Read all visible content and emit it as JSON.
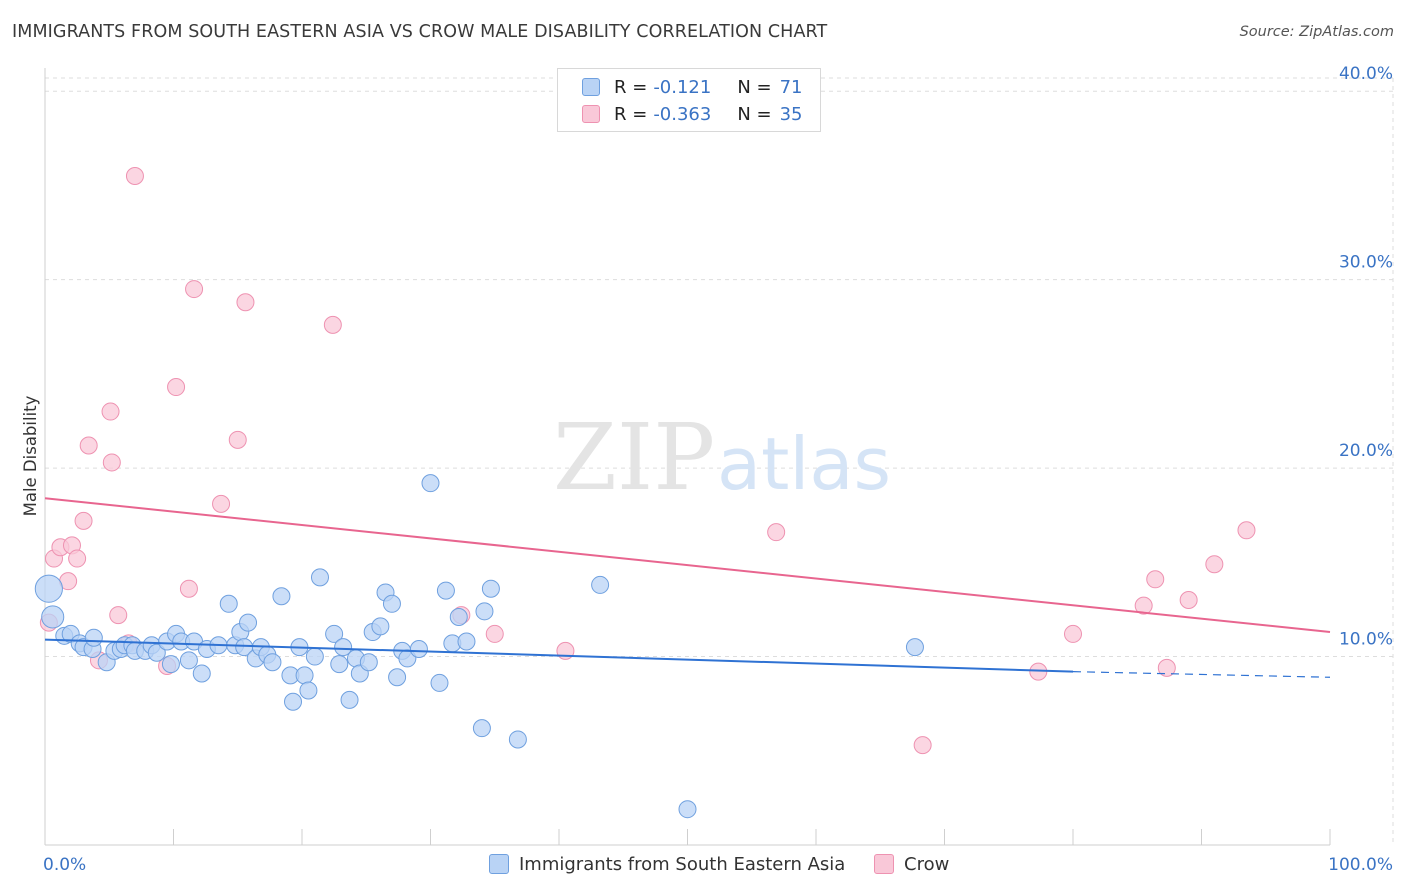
{
  "title": "IMMIGRANTS FROM SOUTH EASTERN ASIA VS CROW MALE DISABILITY CORRELATION CHART",
  "source": "Source: ZipAtlas.com",
  "watermark": {
    "zip": "ZIP",
    "atlas": "atlas"
  },
  "legend": {
    "rows": [
      {
        "r_label": "R =",
        "r_value": "-0.121",
        "n_label": "N =",
        "n_value": "71"
      },
      {
        "r_label": "R =",
        "r_value": "-0.363",
        "n_label": "N =",
        "n_value": "35"
      }
    ]
  },
  "bottom_legend": [
    "Immigrants from South Eastern Asia",
    "Crow"
  ],
  "colors": {
    "blue_fill": "#b9d3f5",
    "blue_stroke": "#6fa0df",
    "blue_line": "#2f72d3",
    "pink_fill": "#f9c8d8",
    "pink_stroke": "#ee92b1",
    "pink_line": "#e8658f",
    "tick_label": "#3a73c4",
    "grid": "#dddddd"
  },
  "chart_data": {
    "type": "scatter",
    "title": "IMMIGRANTS FROM SOUTH EASTERN ASIA VS CROW MALE DISABILITY CORRELATION CHART",
    "xlabel": "",
    "ylabel": "Male Disability",
    "xlim": [
      0,
      100
    ],
    "ylim": [
      0,
      40.7
    ],
    "x_tick_labels": [
      "0.0%",
      "100.0%"
    ],
    "y_ticks": [
      10,
      20,
      30,
      40
    ],
    "y_tick_labels": [
      "10.0%",
      "20.0%",
      "30.0%",
      "40.0%"
    ],
    "grid": true,
    "series": [
      {
        "name": "Immigrants from South Eastern Asia",
        "r": -0.121,
        "n": 71,
        "trend": {
          "x0": 0,
          "y0": 10.9,
          "x1": 80,
          "y1": 9.2,
          "dash_to_x": 100,
          "dash_to_y": 8.9
        },
        "points": [
          [
            0.3,
            13.6,
            1.6
          ],
          [
            0.6,
            12.1,
            1.3
          ],
          [
            1.5,
            11.1,
            1
          ],
          [
            2,
            11.2,
            1
          ],
          [
            2.7,
            10.7,
            1
          ],
          [
            3,
            10.5,
            1
          ],
          [
            3.7,
            10.4,
            1
          ],
          [
            3.8,
            11,
            1
          ],
          [
            4.8,
            9.7,
            1
          ],
          [
            5.4,
            10.3,
            1
          ],
          [
            5.9,
            10.4,
            1
          ],
          [
            6.2,
            10.6,
            1
          ],
          [
            6.8,
            10.6,
            1
          ],
          [
            7,
            10.3,
            1
          ],
          [
            7.8,
            10.3,
            1
          ],
          [
            8.3,
            10.6,
            1
          ],
          [
            8.7,
            10.2,
            1
          ],
          [
            9.5,
            10.8,
            1
          ],
          [
            9.8,
            9.6,
            1
          ],
          [
            10.2,
            11.2,
            1
          ],
          [
            10.6,
            10.8,
            1
          ],
          [
            11.2,
            9.8,
            1
          ],
          [
            11.6,
            10.8,
            1
          ],
          [
            12.2,
            9.1,
            1
          ],
          [
            12.6,
            10.4,
            1
          ],
          [
            13.5,
            10.6,
            1
          ],
          [
            14.3,
            12.8,
            1
          ],
          [
            14.8,
            10.6,
            1
          ],
          [
            15.2,
            11.3,
            1
          ],
          [
            15.5,
            10.5,
            1
          ],
          [
            15.8,
            11.8,
            1
          ],
          [
            16.4,
            9.9,
            1
          ],
          [
            16.8,
            10.5,
            1
          ],
          [
            17.3,
            10.1,
            1
          ],
          [
            17.7,
            9.7,
            1
          ],
          [
            18.4,
            13.2,
            1
          ],
          [
            19.1,
            9,
            1
          ],
          [
            19.3,
            7.6,
            1
          ],
          [
            19.8,
            10.5,
            1
          ],
          [
            20.2,
            9,
            1
          ],
          [
            20.5,
            8.2,
            1
          ],
          [
            21,
            10,
            1
          ],
          [
            21.4,
            14.2,
            1
          ],
          [
            22.5,
            11.2,
            1
          ],
          [
            22.9,
            9.6,
            1
          ],
          [
            23.2,
            10.5,
            1
          ],
          [
            23.7,
            7.7,
            1
          ],
          [
            24.2,
            9.9,
            1
          ],
          [
            24.5,
            9.1,
            1
          ],
          [
            25.2,
            9.7,
            1
          ],
          [
            25.5,
            11.3,
            1
          ],
          [
            26.1,
            11.6,
            1
          ],
          [
            26.5,
            13.4,
            1
          ],
          [
            27,
            12.8,
            1
          ],
          [
            27.4,
            8.9,
            1
          ],
          [
            27.8,
            10.3,
            1
          ],
          [
            28.2,
            9.9,
            1
          ],
          [
            29.1,
            10.4,
            1
          ],
          [
            30,
            19.2,
            1
          ],
          [
            30.7,
            8.6,
            1
          ],
          [
            31.2,
            13.5,
            1
          ],
          [
            31.7,
            10.7,
            1
          ],
          [
            32.2,
            12.1,
            1
          ],
          [
            32.8,
            10.8,
            1
          ],
          [
            34.2,
            12.4,
            1
          ],
          [
            34.7,
            13.6,
            1
          ],
          [
            34,
            6.2,
            1
          ],
          [
            36.8,
            5.6,
            1
          ],
          [
            43.2,
            13.8,
            1
          ],
          [
            50,
            1.9,
            1
          ],
          [
            67.7,
            10.5,
            1
          ]
        ]
      },
      {
        "name": "Crow",
        "r": -0.363,
        "n": 35,
        "trend": {
          "x0": 0,
          "y0": 18.4,
          "x1": 100,
          "y1": 11.3
        },
        "points": [
          [
            0.3,
            11.8,
            1
          ],
          [
            0.7,
            15.2,
            1
          ],
          [
            1.2,
            15.8,
            1
          ],
          [
            1.8,
            14,
            1
          ],
          [
            2.1,
            15.9,
            1
          ],
          [
            2.5,
            15.2,
            1
          ],
          [
            3,
            17.2,
            1
          ],
          [
            3.4,
            21.2,
            1
          ],
          [
            4.2,
            9.8,
            1
          ],
          [
            5.1,
            23,
            1
          ],
          [
            5.2,
            20.3,
            1
          ],
          [
            5.7,
            12.2,
            1
          ],
          [
            6.5,
            10.7,
            1
          ],
          [
            7,
            35.5,
            1
          ],
          [
            9.5,
            9.5,
            1
          ],
          [
            10.2,
            24.3,
            1
          ],
          [
            11.2,
            13.6,
            1
          ],
          [
            11.6,
            29.5,
            1
          ],
          [
            13.7,
            18.1,
            1
          ],
          [
            15,
            21.5,
            1
          ],
          [
            15.6,
            28.8,
            1
          ],
          [
            22.4,
            27.6,
            1
          ],
          [
            32.4,
            12.2,
            1
          ],
          [
            35,
            11.2,
            1
          ],
          [
            40.5,
            10.3,
            1
          ],
          [
            56.9,
            16.6,
            1
          ],
          [
            68.3,
            5.3,
            1
          ],
          [
            77.3,
            9.2,
            1
          ],
          [
            80,
            11.2,
            1
          ],
          [
            85.5,
            12.7,
            1
          ],
          [
            86.4,
            14.1,
            1
          ],
          [
            87.3,
            9.4,
            1
          ],
          [
            89,
            13,
            1
          ],
          [
            91,
            14.9,
            1
          ],
          [
            93.5,
            16.7,
            1
          ]
        ]
      }
    ]
  }
}
